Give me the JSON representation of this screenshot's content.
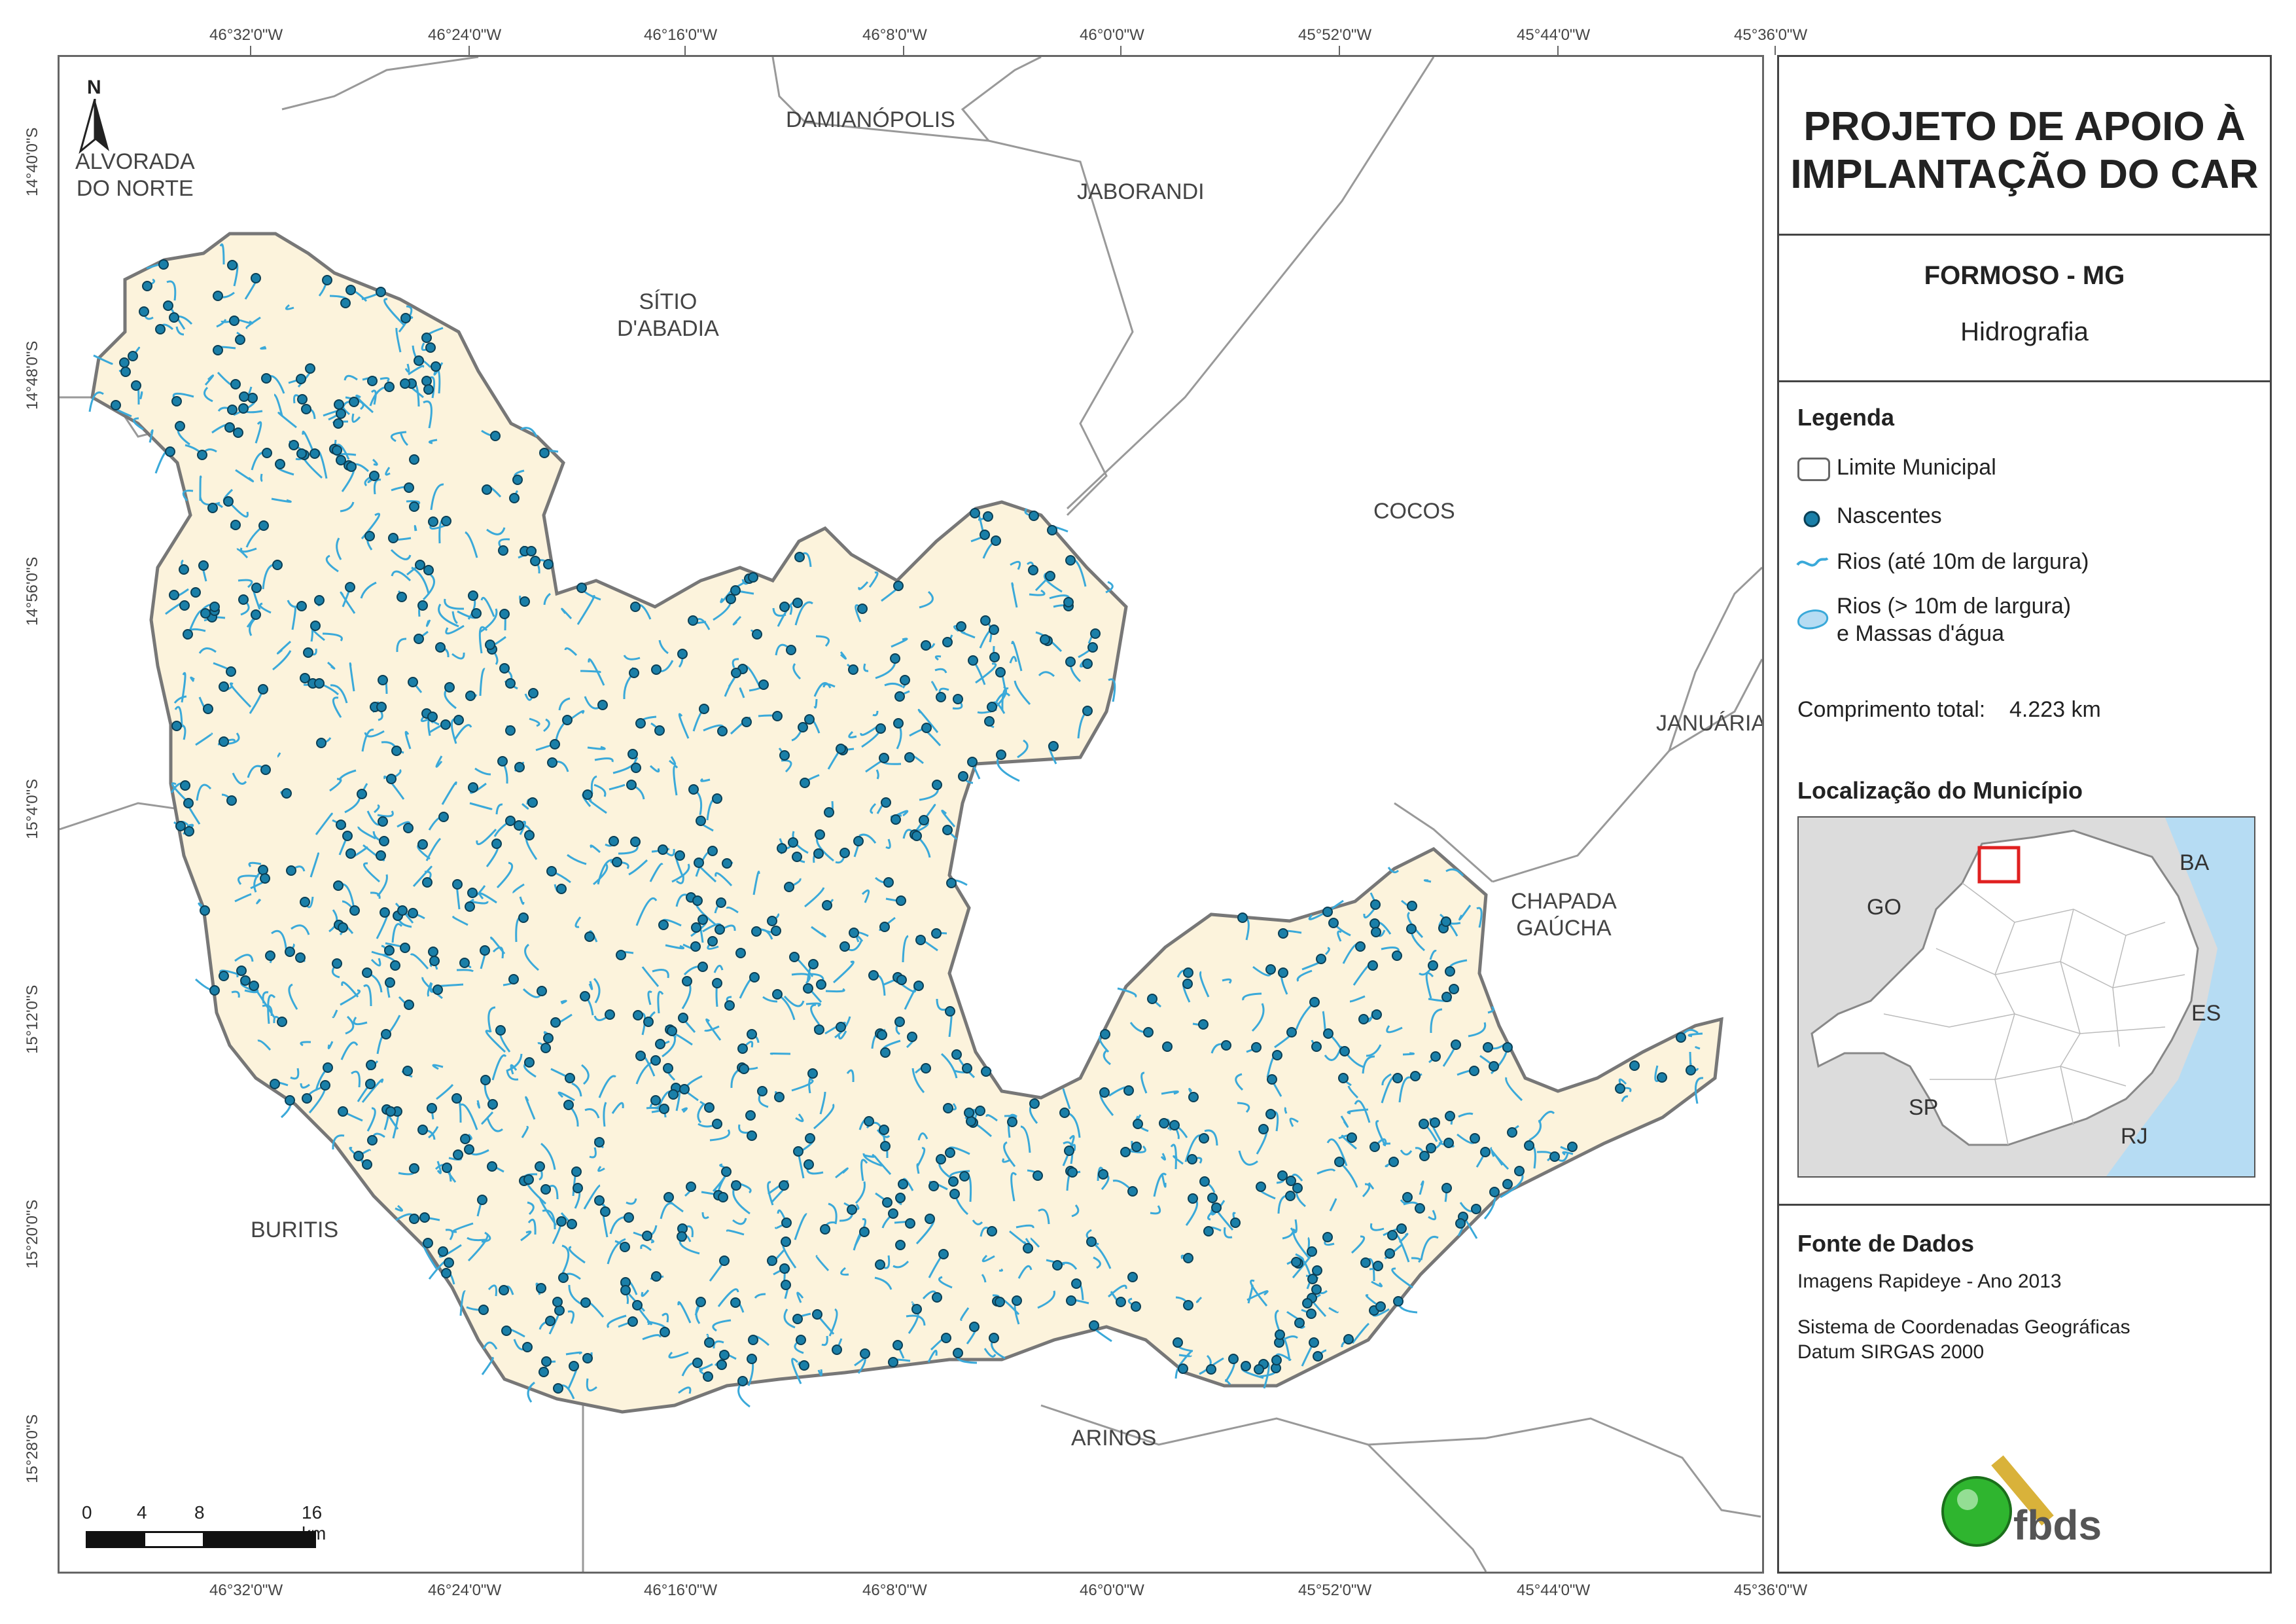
{
  "coords_top": [
    "46°32'0\"W",
    "46°24'0\"W",
    "46°16'0\"W",
    "46°8'0\"W",
    "46°0'0\"W",
    "45°52'0\"W",
    "45°44'0\"W",
    "45°36'0\"W"
  ],
  "coords_bottom": [
    "46°32'0\"W",
    "46°24'0\"W",
    "46°16'0\"W",
    "46°8'0\"W",
    "46°0'0\"W",
    "45°52'0\"W",
    "45°44'0\"W",
    "45°36'0\"W"
  ],
  "coords_left": [
    "14°40'0\"S",
    "14°48'0\"S",
    "14°56'0\"S",
    "15°4'0\"S",
    "15°12'0\"S",
    "15°20'0\"S",
    "15°28'0\"S"
  ],
  "north_label": "N",
  "municipalities": [
    {
      "id": "alvorada",
      "lines": [
        "ALVORADA",
        "DO NORTE"
      ]
    },
    {
      "id": "damianopolis",
      "lines": [
        "DAMIANÓPOLIS"
      ]
    },
    {
      "id": "jaborandi",
      "lines": [
        "JABORANDI"
      ]
    },
    {
      "id": "sitio",
      "lines": [
        "SÍTIO",
        "D'ABADIA"
      ]
    },
    {
      "id": "cocos",
      "lines": [
        "COCOS"
      ]
    },
    {
      "id": "januaria",
      "lines": [
        "JANUÁRIA"
      ]
    },
    {
      "id": "chapada",
      "lines": [
        "CHAPADA",
        "GAÚCHA"
      ]
    },
    {
      "id": "buritis",
      "lines": [
        "BURITIS"
      ]
    },
    {
      "id": "arinos",
      "lines": [
        "ARINOS"
      ]
    }
  ],
  "scale_bar": {
    "labels": [
      "0",
      "4",
      "8",
      "16 km"
    ]
  },
  "panel": {
    "title_line1": "PROJETO DE APOIO À",
    "title_line2": "IMPLANTAÇÃO DO CAR",
    "subtitle": "FORMOSO - MG",
    "theme": "Hidrografia",
    "legend_title": "Legenda",
    "legend_items": {
      "limite": "Limite Municipal",
      "nascentes": "Nascentes",
      "rios_small": "Rios (até 10m de largura)",
      "rios_large_1": "Rios (> 10m de largura)",
      "rios_large_2": "e Massas d'água"
    },
    "total_label": "Comprimento total:",
    "total_value": "4.223 km",
    "location_title": "Localização do Município",
    "location_labels": {
      "go": "GO",
      "ba": "BA",
      "es": "ES",
      "sp": "SP",
      "rj": "RJ"
    },
    "source_title": "Fonte de Dados",
    "source_1": "Imagens Rapideye - Ano 2013",
    "source_2": "Sistema de Coordenadas Geográficas",
    "source_3": "Datum SIRGAS 2000",
    "logo_text": "fbds"
  },
  "colors": {
    "municipality_fill": "#fcf3dc",
    "river": "#3aa9d9",
    "spring": "#1a7fa8",
    "border": "#777777",
    "accent_red": "#e02020",
    "logo_green": "#2fb52f",
    "logo_gold": "#d9b23a"
  }
}
